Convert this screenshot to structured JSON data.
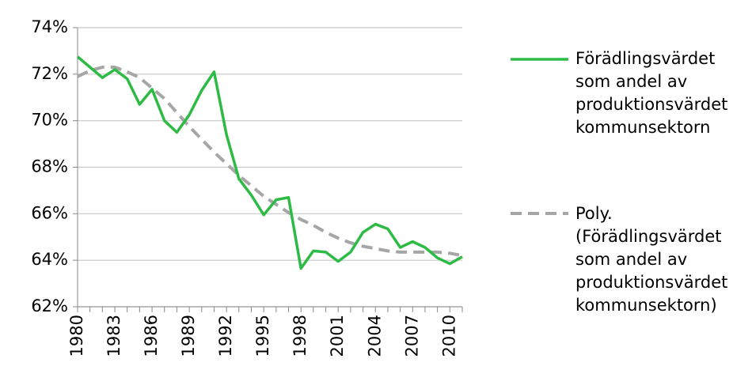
{
  "chart_data": {
    "type": "line",
    "x": [
      1980,
      1981,
      1982,
      1983,
      1984,
      1985,
      1986,
      1987,
      1988,
      1989,
      1990,
      1991,
      1992,
      1993,
      1994,
      1995,
      1996,
      1997,
      1998,
      1999,
      2000,
      2001,
      2002,
      2003,
      2004,
      2005,
      2006,
      2007,
      2008,
      2009,
      2010,
      2011
    ],
    "xlim": [
      1980,
      2011
    ],
    "xticks": [
      1980,
      1983,
      1986,
      1989,
      1992,
      1995,
      1998,
      2001,
      2004,
      2007,
      2010
    ],
    "ylim": [
      62,
      74
    ],
    "yticks": [
      {
        "value": 62,
        "label": "62%"
      },
      {
        "value": 64,
        "label": "64%"
      },
      {
        "value": 66,
        "label": "66%"
      },
      {
        "value": 68,
        "label": "68%"
      },
      {
        "value": 70,
        "label": "70%"
      },
      {
        "value": 72,
        "label": "72%"
      },
      {
        "value": 74,
        "label": "74%"
      }
    ],
    "grid": true,
    "legend": "right",
    "series": [
      {
        "name": "Förädlingsvärdet som andel av produktionsvärdet kommunsektorn",
        "color": "#2dbb45",
        "dashed": false,
        "values": [
          72.75,
          72.3,
          71.85,
          72.2,
          71.8,
          70.7,
          71.35,
          70.0,
          69.5,
          70.25,
          71.3,
          72.1,
          69.4,
          67.5,
          66.8,
          65.95,
          66.6,
          66.7,
          63.65,
          64.4,
          64.35,
          63.95,
          64.35,
          65.2,
          65.55,
          65.35,
          64.55,
          64.8,
          64.55,
          64.1,
          63.85,
          64.15
        ]
      },
      {
        "name": "Poly. (Förädlingsvärdet som andel av produktionsvärdet kommunsektorn)",
        "color": "#a6a6a6",
        "dashed": true,
        "values": [
          71.9,
          72.15,
          72.3,
          72.3,
          72.1,
          71.85,
          71.4,
          70.95,
          70.35,
          69.75,
          69.2,
          68.65,
          68.15,
          67.65,
          67.2,
          66.75,
          66.4,
          66.05,
          65.75,
          65.5,
          65.2,
          64.95,
          64.75,
          64.6,
          64.5,
          64.4,
          64.35,
          64.35,
          64.35,
          64.35,
          64.3,
          64.2
        ]
      }
    ]
  }
}
